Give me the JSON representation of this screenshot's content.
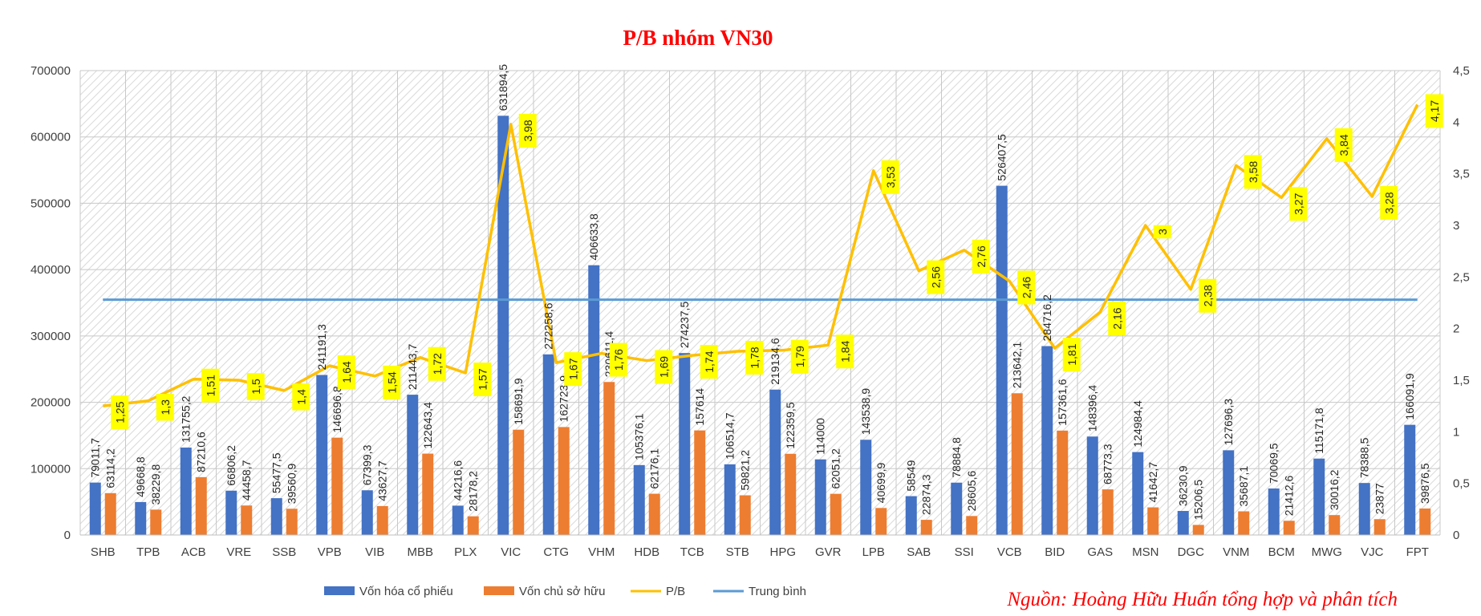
{
  "chart_data": {
    "type": "bar",
    "title": "P/B nhóm VN30",
    "source_note": "Nguồn: Hoàng Hữu Huấn tổng hợp và phân tích",
    "categories": [
      "SHB",
      "TPB",
      "ACB",
      "VRE",
      "SSB",
      "VPB",
      "VIB",
      "MBB",
      "PLX",
      "VIC",
      "CTG",
      "VHM",
      "HDB",
      "TCB",
      "STB",
      "HPG",
      "GVR",
      "LPB",
      "SAB",
      "SSI",
      "VCB",
      "BID",
      "GAS",
      "MSN",
      "DGC",
      "VNM",
      "BCM",
      "MWG",
      "VJC",
      "FPT"
    ],
    "series": [
      {
        "name": "Vốn hóa cổ phiếu",
        "type": "bar",
        "axis": "left",
        "color": "#4472C4",
        "values": [
          79011.7,
          49668.8,
          131755.2,
          66806.2,
          55477.5,
          241191.3,
          67399.3,
          211443.7,
          44216.6,
          631894.5,
          272258.6,
          406633.8,
          105376.1,
          274237.5,
          106514.7,
          219134.6,
          114000,
          143538.9,
          58549,
          78884.8,
          526407.5,
          284716.2,
          148396.4,
          124984.4,
          36230.9,
          127696.3,
          70069.5,
          115171.8,
          78388.5,
          166091.9
        ],
        "labels": [
          "79011,7",
          "49668,8",
          "131755,2",
          "66806,2",
          "55477,5",
          "241191,3",
          "67399,3",
          "211443,7",
          "44216,6",
          "631894,5",
          "272258,6",
          "406633,8",
          "105376,1",
          "274237,5",
          "106514,7",
          "219134,6",
          "114000",
          "143538,9",
          "58549",
          "78884,8",
          "526407,5",
          "284716,2",
          "148396,4",
          "124984,4",
          "36230,9",
          "127696,3",
          "70069,5",
          "115171,8",
          "78388,5",
          "166091,9"
        ]
      },
      {
        "name": "Vốn chủ sở hữu",
        "type": "bar",
        "axis": "left",
        "color": "#ED7D31",
        "values": [
          63114.2,
          38229.8,
          87210.6,
          44458.7,
          39560.9,
          146696.8,
          43627.7,
          122643.4,
          28178.2,
          158691.9,
          162723.9,
          230611.4,
          62176.1,
          157614,
          59821.2,
          122359.5,
          62051.2,
          40699.9,
          22874.3,
          28605.6,
          213642.1,
          157361.6,
          68773.3,
          41642.7,
          15206.5,
          35687.1,
          21412.6,
          30016.2,
          23877,
          39876.5
        ],
        "labels": [
          "63114,2",
          "38229,8",
          "87210,6",
          "44458,7",
          "39560,9",
          "146696,8",
          "43627,7",
          "122643,4",
          "28178,2",
          "158691,9",
          "162723,9",
          "230611,4",
          "62176,1",
          "157614",
          "59821,2",
          "122359,5",
          "62051,2",
          "40699,9",
          "22874,3",
          "28605,6",
          "213642,1",
          "157361,6",
          "68773,3",
          "41642,7",
          "15206,5",
          "35687,1",
          "21412,6",
          "30016,2",
          "23877",
          "39876,5"
        ]
      },
      {
        "name": "P/B",
        "type": "line",
        "axis": "right",
        "color": "#FFC000",
        "label_background": "#FFFF00",
        "values": [
          1.25,
          1.3,
          1.51,
          1.5,
          1.4,
          1.64,
          1.54,
          1.72,
          1.57,
          3.98,
          1.67,
          1.76,
          1.69,
          1.74,
          1.78,
          1.79,
          1.84,
          3.53,
          2.56,
          2.76,
          2.46,
          1.81,
          2.16,
          3,
          2.38,
          3.58,
          3.27,
          3.84,
          3.28,
          4.17
        ],
        "labels": [
          "1,25",
          "1,3",
          "1,51",
          "1,5",
          "1,4",
          "1,64",
          "1,54",
          "1,72",
          "1,57",
          "3,98",
          "1,67",
          "1,76",
          "1,69",
          "1,74",
          "1,78",
          "1,79",
          "1,84",
          "3,53",
          "2,56",
          "2,76",
          "2,46",
          "1,81",
          "2,16",
          "3",
          "2,38",
          "3,58",
          "3,27",
          "3,84",
          "3,28",
          "4,17"
        ]
      },
      {
        "name": "Trung bình",
        "type": "line",
        "axis": "right",
        "color": "#5B9BD5",
        "value": 2.28
      }
    ],
    "y_left": {
      "min": 0,
      "max": 700000,
      "ticks": [
        "0",
        "100000",
        "200000",
        "300000",
        "400000",
        "500000",
        "600000",
        "700000"
      ]
    },
    "y_right": {
      "min": 0,
      "max": 4.5,
      "ticks": [
        "0",
        "0,5",
        "1",
        "1,5",
        "2",
        "2,5",
        "3",
        "3,5",
        "4",
        "4,5"
      ]
    },
    "grid": true,
    "legend_position": "bottom"
  }
}
